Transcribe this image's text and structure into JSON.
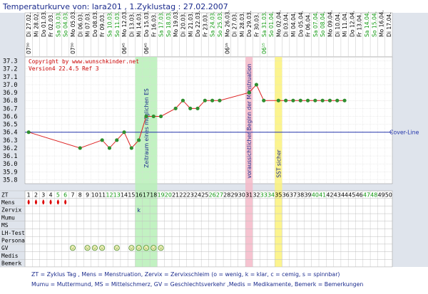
{
  "header": {
    "title": "Temperaturkurve von: lara201 , 1.Zyklustag : 27.02.2007",
    "copyright": "Copyright by www.wunschkinder.net",
    "version": "Version4 22.4.5 Ref 3"
  },
  "colors": {
    "title": "#1a2a8c",
    "weekday": "#000000",
    "weekend": "#119911",
    "curve_line": "#dd2222",
    "curve_point": "#2f8f2f",
    "coverline": "#2233aa",
    "band_green": "#b7f0b7",
    "band_pink": "#f4b8c8",
    "band_yellow": "#fbf27a",
    "text_red": "#cc0000",
    "mens_drop": "#dd0000"
  },
  "chart_data": {
    "type": "line",
    "title": "Temperaturkurve von: lara201 , 1.Zyklustag : 27.02.2007",
    "xlabel": "ZT",
    "ylabel": "",
    "ylim": [
      35.7,
      37.3
    ],
    "y_ticks": [
      "37.3",
      "37.2",
      "37.1",
      "37.0",
      "36.9",
      "36.8",
      "36.7",
      "36.6",
      "36.5",
      "36.4",
      "36.3",
      "36.2",
      "36.1",
      "36.0",
      "35.9",
      "35.8"
    ],
    "x": [
      1,
      2,
      3,
      4,
      5,
      6,
      7,
      8,
      9,
      10,
      11,
      12,
      13,
      14,
      15,
      16,
      17,
      18,
      19,
      20,
      21,
      22,
      23,
      24,
      25,
      26,
      27,
      28,
      29,
      30,
      31,
      32,
      33,
      34,
      35,
      36,
      37,
      38,
      39,
      40,
      41,
      42,
      43,
      44,
      45,
      46,
      47,
      48,
      49,
      50
    ],
    "dates": [
      "Di 27.02.",
      "Mi 28.02.",
      "Do 01.03.",
      "Fr 02.03.",
      "Sa 03.03.",
      "So 04.03.",
      "Mo 05.03.",
      "Di 06.03.",
      "Mi 07.03.",
      "Do 08.03.",
      "Fr 09.03.",
      "Sa 10.03.",
      "So 11.03.",
      "Mo 12.03.",
      "Di 13.03.",
      "Mi 14.03.",
      "Do 15.03.",
      "Fr 16.03.",
      "Sa 17.03.",
      "So 18.03.",
      "Mo 19.03.",
      "Di 20.03.",
      "Mi 21.03.",
      "Do 22.03.",
      "Fr 23.03.",
      "Sa 24.03.",
      "So 25.03.",
      "Mo 26.03.",
      "Di 27.03.",
      "Mi 28.03.",
      "Do 29.03.",
      "Fr 30.03.",
      "Sa 31.03.",
      "So 01.04.",
      "Mo 02.04.",
      "Di 03.04.",
      "Mi 04.04.",
      "Do 05.04.",
      "Fr 06.04.",
      "Sa 07.04.",
      "So 08.04.",
      "Mo 09.04.",
      "Di 10.04.",
      "Mi 11.04.",
      "Do 12.04.",
      "Fr 13.04.",
      "Sa 14.04.",
      "So 15.04.",
      "Mo 16.04.",
      "Di 17.04."
    ],
    "times": [
      "07³⁰",
      "",
      "",
      "",
      "",
      "",
      "07³⁰",
      "",
      "",
      "",
      "",
      "",
      "",
      "06⁴⁵",
      "",
      "",
      "06⁴⁵",
      "",
      "",
      "",
      "",
      "",
      "",
      "",
      "",
      "",
      "",
      "06¹⁵",
      "",
      "",
      "",
      "",
      "06¹⁵",
      "",
      "",
      "",
      "",
      "",
      "",
      "",
      "",
      "",
      "",
      "",
      "",
      "",
      "",
      "",
      "",
      ""
    ],
    "series": [
      {
        "values": [
          36.4,
          null,
          null,
          null,
          null,
          null,
          null,
          36.2,
          null,
          null,
          36.3,
          36.2,
          36.3,
          36.4,
          36.2,
          36.3,
          36.6,
          36.6,
          36.6,
          null,
          36.7,
          36.8,
          36.7,
          36.7,
          36.8,
          36.8,
          36.8,
          null,
          null,
          null,
          36.9,
          37.0,
          36.8,
          null,
          36.8,
          36.8,
          36.8,
          36.8,
          36.8,
          36.8,
          36.8,
          36.8,
          36.8,
          36.8,
          null,
          null,
          null,
          null,
          null,
          null
        ]
      }
    ],
    "coverline": {
      "value": 36.4,
      "label": "Cover-Line"
    },
    "bands": [
      {
        "from": 16,
        "to": 18,
        "color": "green",
        "label": "Zeitraum eines möglichen ES"
      },
      {
        "from": 31,
        "to": 31,
        "color": "pink",
        "label": "voraussichtlicher Beginn der Menstruation"
      },
      {
        "from": 35,
        "to": 35,
        "color": "yellow",
        "label": "SST sicher"
      }
    ],
    "rows": [
      {
        "label": "ZT"
      },
      {
        "label": "Mens",
        "marks": {
          "1": "drop",
          "2": "drop",
          "3": "drop",
          "4": "drop",
          "5": "drop",
          "6": "drop"
        }
      },
      {
        "label": "Zervix",
        "marks": {
          "16": "k"
        }
      },
      {
        "label": "Mumu"
      },
      {
        "label": "MS"
      },
      {
        "label": "LH-Test"
      },
      {
        "label": "Persona"
      },
      {
        "label": "GV",
        "marks": {
          "7": "smiley",
          "9": "smiley",
          "10": "smiley",
          "11": "smiley",
          "13": "smiley",
          "15": "smiley",
          "16": "smiley",
          "17": "smiley",
          "18": "smiley",
          "19": "smiley"
        }
      },
      {
        "label": "Medis"
      },
      {
        "label": "Bemerk"
      }
    ]
  },
  "legend": {
    "line1": "ZT = Zyklus Tag , Mens = Menstruation, Zervix = Zervixschleim (o = wenig, k = klar, c = cemig, s = spinnbar)",
    "line2": "Mumu = Muttermund, MS = Mittelschmerz, GV = Geschlechtsverkehr ,Medis = Medikamente, Bemerk = Bemerkungen"
  }
}
